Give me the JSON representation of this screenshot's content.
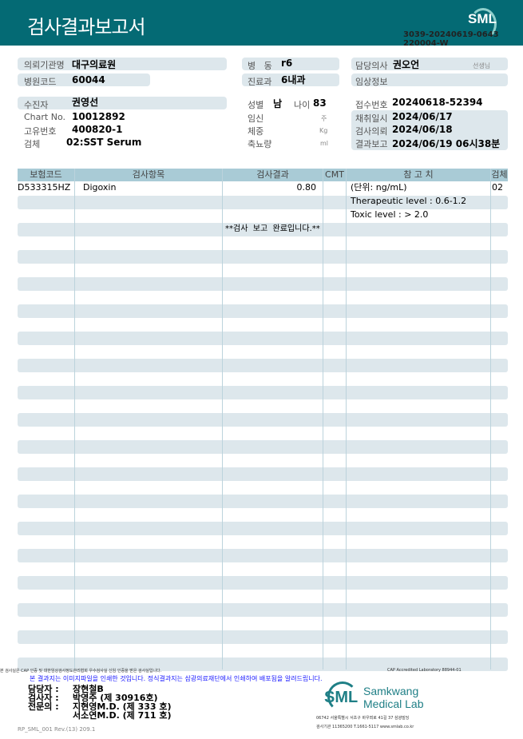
{
  "header": {
    "title": "검사결과보고서",
    "logo": "SML",
    "doc_no_line1": "3039-20240619-0643",
    "doc_no_line2": "220004-W"
  },
  "info": {
    "institution": {
      "label": "의뢰기관명",
      "value": "대구의료원"
    },
    "hospital_code": {
      "label": "병원코드",
      "value": "60044"
    },
    "ward": {
      "label": "병   동",
      "value": "r6"
    },
    "dept": {
      "label": "진료과",
      "value": "6내과"
    },
    "doctor": {
      "label": "담당의사",
      "value": "권오언",
      "suffix": "선생님"
    },
    "clinical": {
      "label": "임상정보",
      "value": ""
    },
    "patient": {
      "label": "수진자",
      "value": "권영선"
    },
    "chart_no": {
      "label": "Chart No.",
      "value": "10012892"
    },
    "unique_no": {
      "label": "고유번호",
      "value": "400820-1"
    },
    "specimen": {
      "label": "검체",
      "value": "02:SST Serum"
    },
    "sex": {
      "label": "성별",
      "value": "남"
    },
    "age": {
      "label": "나이",
      "value": "83"
    },
    "pregnancy": {
      "label": "임신",
      "unit": "주"
    },
    "weight": {
      "label": "체중",
      "unit": "Kg"
    },
    "urine": {
      "label": "축뇨량",
      "unit": "ml"
    },
    "receipt_no": {
      "label": "접수번호",
      "value": "20240618-52394"
    },
    "collected": {
      "label": "채취일시",
      "value": "2024/06/17"
    },
    "requested": {
      "label": "검사의뢰",
      "value": "2024/06/18"
    },
    "reported": {
      "label": "결과보고",
      "value": "2024/06/19 06시38분"
    }
  },
  "table": {
    "headers": [
      "보험코드",
      "검사항목",
      "검사결과",
      "CMT",
      "참 고 치",
      "검체"
    ],
    "row": {
      "code": "D533315HZ",
      "item": "Digoxin",
      "result": "0.80",
      "cmt": "",
      "ref": [
        "(단위: ng/mL)",
        "Therapeutic level : 0.6-1.2",
        "Toxic level : > 2.0"
      ],
      "specimen": "02"
    },
    "complete_msg": "**검사  보고  완료입니다.**"
  },
  "footer": {
    "cert_text": "본 검사실은 CAP 인증 및 대한임상검사정도관리협회 우수검사실 신임 인증을 받은 검사실입니다.",
    "cap_text": "CAP Accredited Laboratory 88944-01",
    "notice": "본 결과지는 이미지파일을 인쇄한 것입니다. 정식결과지는 삼광의료재단에서 인쇄하여 배포됨을 알려드립니다.",
    "staff": [
      {
        "role": "담당자 :",
        "name": "장현철B"
      },
      {
        "role": "검사자 :",
        "name": "박영주 (제 30916호)"
      },
      {
        "role": "전문의 :",
        "name": "지현영M.D. (제 333 호)"
      },
      {
        "role": "",
        "name": "서소연M.D. (제 711 호)"
      }
    ],
    "brand_logo": "SML",
    "brand_line1": "Samkwang",
    "brand_line2": "Medical Lab",
    "address": "06742 서울특별시 서초구 바우뫼로 41길 37 삼광빌딩",
    "contact": "검사기관 11365200 T.1661-5117 www.smlab.co.kr",
    "form_id": "RP_SML_001 Rev.(13) 209.1"
  },
  "colors": {
    "header": "#046a74",
    "bar": "#dde7ec",
    "table_header": "#a9cbd6",
    "notice": "#1a1aff",
    "brand": "#1f7f86"
  }
}
